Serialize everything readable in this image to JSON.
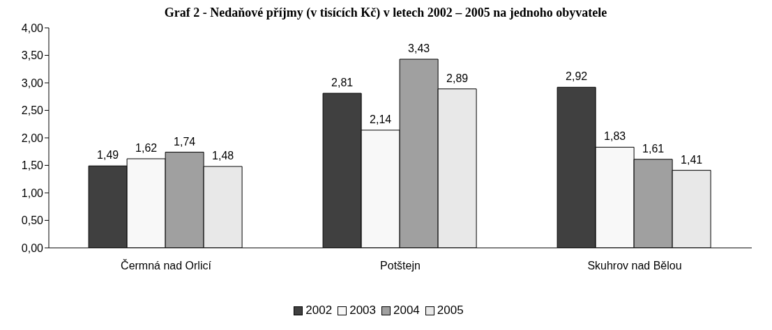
{
  "chart_data": {
    "type": "bar",
    "title": "Graf 2 - Nedaňové příjmy (v tisících Kč) v letech 2002 – 2005 na jednoho obyvatele",
    "categories": [
      "Čermná nad Orlicí",
      "Potštejn",
      "Skuhrov nad Bělou"
    ],
    "series": [
      {
        "name": "2002",
        "color": "#404040",
        "values": [
          1.49,
          2.81,
          2.92
        ],
        "value_labels": [
          "1,49",
          "2,81",
          "2,92"
        ]
      },
      {
        "name": "2003",
        "color": "#f8f8f8",
        "values": [
          1.62,
          2.14,
          1.83
        ],
        "value_labels": [
          "1,62",
          "2,14",
          "1,83"
        ]
      },
      {
        "name": "2004",
        "color": "#a0a0a0",
        "values": [
          1.74,
          3.43,
          1.61
        ],
        "value_labels": [
          "1,74",
          "3,43",
          "1,61"
        ]
      },
      {
        "name": "2005",
        "color": "#e8e8e8",
        "values": [
          1.48,
          2.89,
          1.41
        ],
        "value_labels": [
          "1,48",
          "2,89",
          "1,41"
        ]
      }
    ],
    "ylim": [
      0,
      4
    ],
    "yticks": [
      {
        "value": 0,
        "label": "0,00"
      },
      {
        "value": 0.5,
        "label": "0,50"
      },
      {
        "value": 1,
        "label": "1,00"
      },
      {
        "value": 1.5,
        "label": "1,50"
      },
      {
        "value": 2,
        "label": "2,00"
      },
      {
        "value": 2.5,
        "label": "2,50"
      },
      {
        "value": 3,
        "label": "3,00"
      },
      {
        "value": 3.5,
        "label": "3,50"
      },
      {
        "value": 4,
        "label": "4,00"
      }
    ],
    "grid": false,
    "legend": "bottom"
  }
}
